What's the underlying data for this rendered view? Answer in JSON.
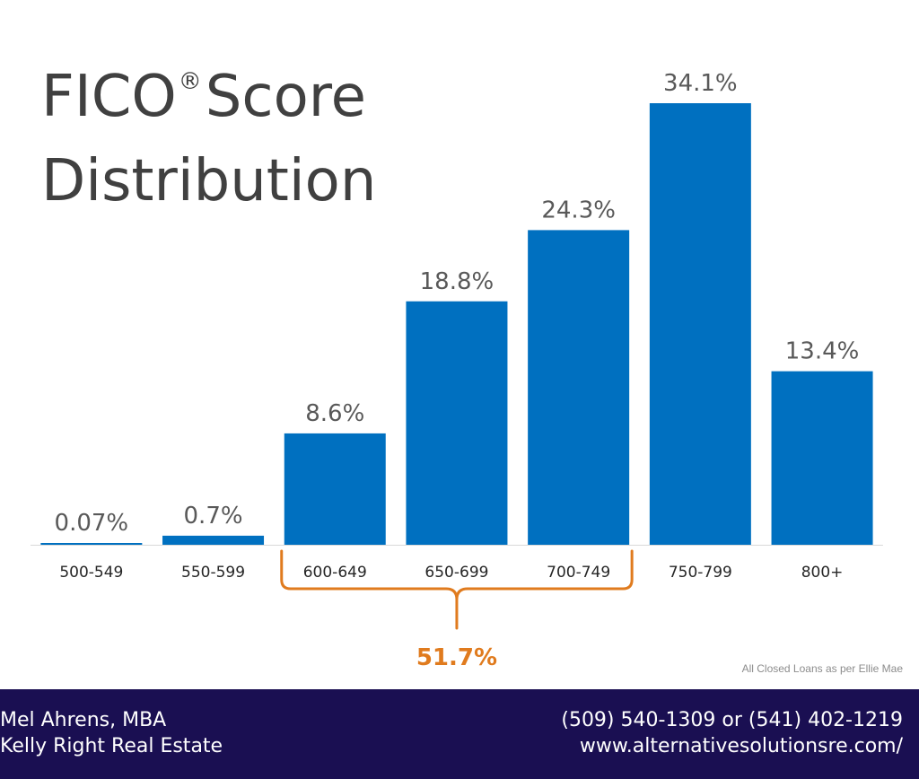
{
  "title": {
    "line1_main": "FICO",
    "line1_mark": "®",
    "line1_end": "Score",
    "line2": "Distribution"
  },
  "chart_data": {
    "type": "bar",
    "categories": [
      "500-549",
      "550-599",
      "600-649",
      "650-699",
      "700-749",
      "750-799",
      "800+"
    ],
    "values": [
      0.07,
      0.7,
      8.6,
      18.8,
      24.3,
      34.1,
      13.4
    ],
    "data_labels": [
      "0.07%",
      "0.7%",
      "8.6%",
      "18.8%",
      "24.3%",
      "34.1%",
      "13.4%"
    ],
    "ylim": [
      0,
      34.1
    ],
    "grid": false,
    "bar_color": "#0070c0",
    "annotation": {
      "text": "51.7%",
      "span_categories": [
        "600-649",
        "700-749"
      ],
      "color": "#e07b1e"
    }
  },
  "source_note": "All Closed Loans as per Ellie Mae",
  "footer": {
    "name": "Mel Ahrens, MBA",
    "company": "Kelly Right Real Estate",
    "phone": "(509) 540-1309 or (541) 402-1219",
    "website": "www.alternativesolutionsre.com/"
  },
  "colors": {
    "footer_bg": "#1a0f52",
    "title_text": "#404040",
    "label_text": "#595959"
  }
}
